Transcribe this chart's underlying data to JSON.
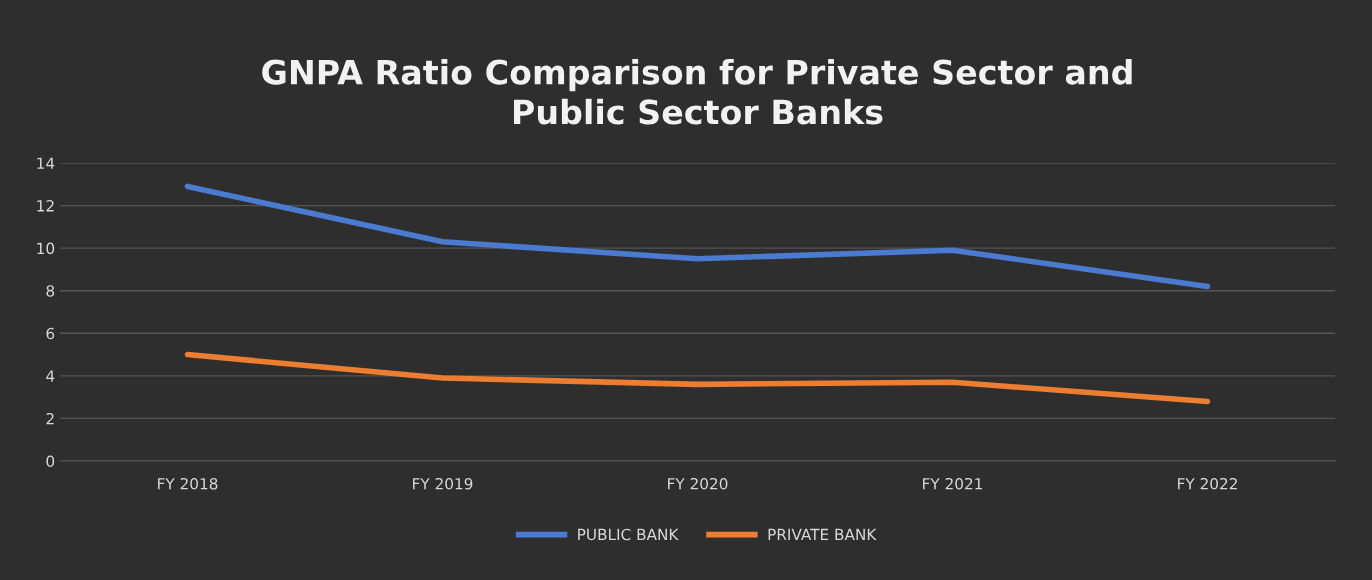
{
  "chart_data": {
    "type": "line",
    "title": "GNPA Ratio Comparison for Private Sector and\nPublic Sector Banks",
    "categories": [
      "FY 2018",
      "FY 2019",
      "FY 2020",
      "FY 2021",
      "FY 2022"
    ],
    "series": [
      {
        "name": "PUBLIC BANK",
        "color": "#4a7bd0",
        "values": [
          12.9,
          10.3,
          9.5,
          9.9,
          8.2
        ]
      },
      {
        "name": "PRIVATE BANK",
        "color": "#ed7d31",
        "values": [
          5.0,
          3.9,
          3.6,
          3.7,
          2.8
        ]
      }
    ],
    "ylim": [
      0,
      14
    ],
    "yticks": [
      0,
      2,
      4,
      6,
      8,
      10,
      12,
      14
    ],
    "grid": "y",
    "legend": "bottom",
    "marker": "none",
    "line_style": "solid"
  }
}
